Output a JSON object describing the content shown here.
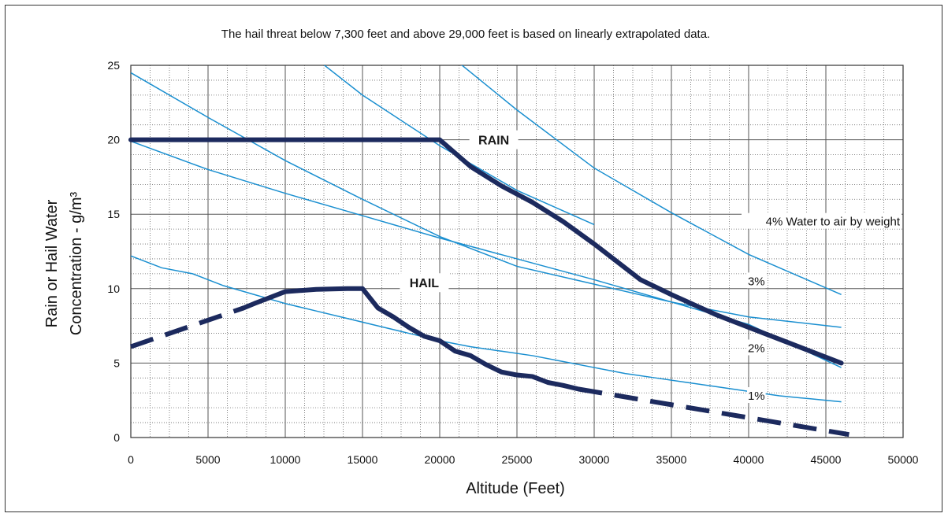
{
  "chart_data": {
    "type": "line",
    "title": "",
    "note": "The hail threat below 7,300 feet and above 29,000 feet is based on linearly extrapolated data.",
    "xlabel": "Altitude (Feet)",
    "ylabel_line1": "Rain or Hail Water",
    "ylabel_line2": "Concentration - g/m³",
    "xlim": [
      0,
      50000
    ],
    "ylim": [
      0,
      25
    ],
    "x_ticks": [
      0,
      5000,
      10000,
      15000,
      20000,
      25000,
      30000,
      35000,
      40000,
      45000,
      50000
    ],
    "y_ticks": [
      0,
      5,
      10,
      15,
      20,
      25
    ],
    "grid": "major solid, minor dotted",
    "series": [
      {
        "name": "RAIN",
        "color": "#1c2a5e",
        "style": "solid",
        "x": [
          0,
          20000,
          22000,
          24000,
          26000,
          28000,
          30000,
          33000,
          35000,
          38000,
          41000,
          44000,
          46000
        ],
        "y": [
          20,
          20,
          18.2,
          16.9,
          15.8,
          14.5,
          13.0,
          10.6,
          9.6,
          8.2,
          7.0,
          5.8,
          5.0
        ]
      },
      {
        "name": "HAIL",
        "color": "#1c2a5e",
        "style": "solid",
        "x": [
          7300,
          8000,
          9000,
          10000,
          12000,
          14000,
          15000,
          16000,
          17000,
          18000,
          19000,
          20000,
          21000,
          22000,
          23000,
          24000,
          25000,
          26000,
          27000,
          28000,
          29000
        ],
        "y": [
          8.7,
          9.0,
          9.4,
          9.8,
          9.95,
          10.0,
          10.0,
          8.7,
          8.1,
          7.4,
          6.8,
          6.5,
          5.8,
          5.5,
          4.9,
          4.4,
          4.2,
          4.1,
          3.7,
          3.5,
          3.25
        ]
      },
      {
        "name": "HAIL (extrapolated)",
        "color": "#1c2a5e",
        "style": "dashed",
        "segments": [
          {
            "x": [
              0,
              7300
            ],
            "y": [
              6.1,
              8.7
            ]
          },
          {
            "x": [
              29000,
              46500
            ],
            "y": [
              3.25,
              0.2
            ]
          }
        ]
      }
    ],
    "iso_lines": {
      "color": "#1a8fd0",
      "curves": [
        {
          "x": [
            11800,
            15000,
            20000,
            25000,
            30000
          ],
          "y": [
            25.6,
            23.0,
            19.6,
            16.6,
            14.3
          ]
        },
        {
          "x": [
            20500,
            25000,
            30000,
            35000,
            40000,
            46000
          ],
          "y": [
            25.8,
            22.0,
            18.1,
            15.1,
            12.3,
            9.6
          ]
        },
        {
          "x": [
            0,
            5000,
            10000,
            15000,
            20000,
            25000,
            30000,
            35000,
            40000,
            46000
          ],
          "y": [
            24.5,
            21.5,
            18.6,
            16.0,
            13.5,
            11.5,
            10.3,
            9.1,
            8.1,
            7.4
          ]
        },
        {
          "x": [
            0,
            5000,
            10000,
            15000,
            20000,
            25000,
            30000,
            35000,
            40000,
            46000
          ],
          "y": [
            19.9,
            18.0,
            16.4,
            14.9,
            13.4,
            12.0,
            10.6,
            9.1,
            7.6,
            4.7
          ]
        },
        {
          "x": [
            0,
            2000,
            4000,
            6000,
            8000,
            10000,
            12000,
            14000,
            16000,
            18000,
            20000,
            22000,
            24000,
            26000,
            28000,
            30000,
            32000,
            34000,
            36000,
            38000,
            40000,
            42000,
            44000,
            46000
          ],
          "y": [
            12.2,
            11.4,
            11.0,
            10.2,
            9.6,
            9.0,
            8.5,
            8.0,
            7.5,
            7.0,
            6.5,
            6.1,
            5.8,
            5.5,
            5.1,
            4.7,
            4.3,
            4.0,
            3.7,
            3.4,
            3.1,
            2.8,
            2.6,
            2.4
          ]
        }
      ],
      "labels": [
        {
          "text": "4% Water to air by weight",
          "x": 46000,
          "y": 14.5
        },
        {
          "text": "3%",
          "x": 40500,
          "y": 10.5
        },
        {
          "text": "2%",
          "x": 40500,
          "y": 6.0
        },
        {
          "text": "1%",
          "x": 40500,
          "y": 2.8
        }
      ]
    },
    "series_labels": [
      {
        "text": "RAIN",
        "x": 23500,
        "y": 20
      },
      {
        "text": "HAIL",
        "x": 19000,
        "y": 10.4
      }
    ]
  }
}
